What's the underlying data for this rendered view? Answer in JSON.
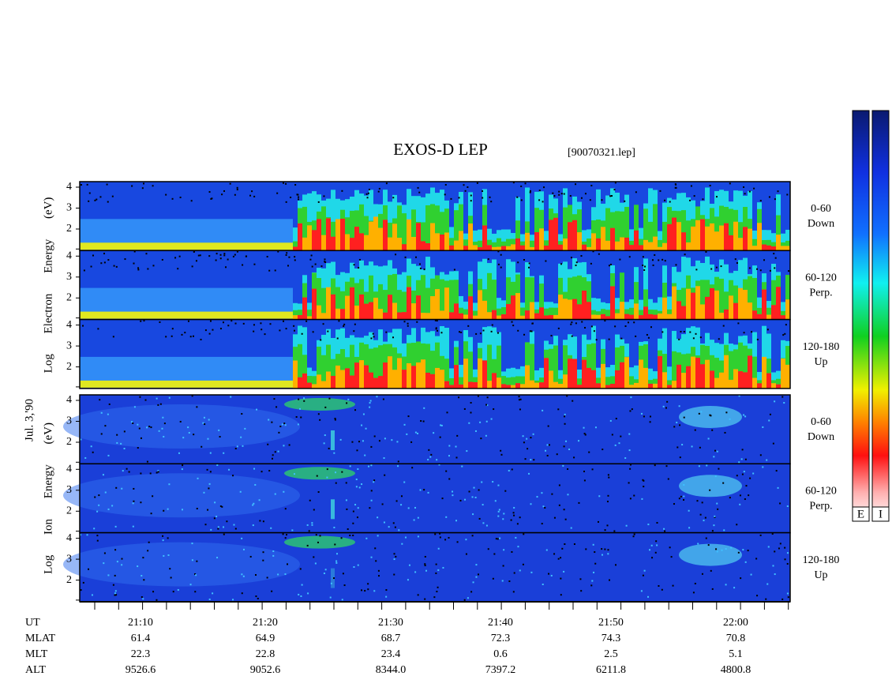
{
  "header": {
    "title": "EXOS-D LEP",
    "file": "[90070321.lep]"
  },
  "date": "Jul. 3,'90",
  "groups": [
    {
      "axis_label": "Log Electron Energy (eV)",
      "panels": [
        {
          "angle": "0-60",
          "direction": "Down"
        },
        {
          "angle": "60-120",
          "direction": "Perp."
        },
        {
          "angle": "120-180",
          "direction": "Up"
        }
      ]
    },
    {
      "axis_label": "Log Ion Energy (eV)",
      "panels": [
        {
          "angle": "0-60",
          "direction": "Down"
        },
        {
          "angle": "60-120",
          "direction": "Perp."
        },
        {
          "angle": "120-180",
          "direction": "Up"
        }
      ]
    }
  ],
  "yticks": [
    "2",
    "3",
    "4"
  ],
  "colorbar": [
    "E",
    "I"
  ],
  "orbit": {
    "rows": [
      {
        "name": "UT",
        "values": [
          "21:10",
          "21:20",
          "21:30",
          "21:40",
          "21:50",
          "22:00"
        ]
      },
      {
        "name": "MLAT",
        "values": [
          "61.4",
          "64.9",
          "68.7",
          "72.3",
          "74.3",
          "70.8"
        ]
      },
      {
        "name": "MLT",
        "values": [
          "22.3",
          "22.8",
          "23.4",
          "0.6",
          "2.5",
          "5.1"
        ]
      },
      {
        "name": "ALT",
        "values": [
          "9526.6",
          "9052.6",
          "8344.0",
          "7397.2",
          "6211.8",
          "4800.8"
        ]
      }
    ]
  }
}
